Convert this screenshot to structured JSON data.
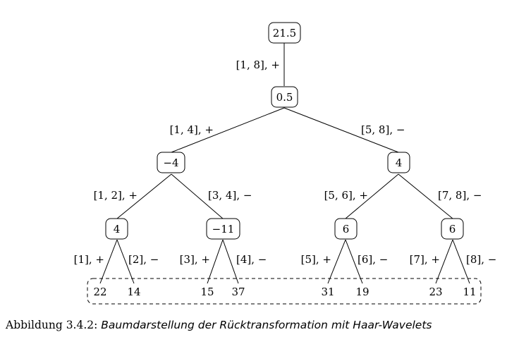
{
  "tree": {
    "nodes": {
      "n1": "21.5",
      "n2": "0.5",
      "n3": "−4",
      "n4": "4",
      "n5": "4",
      "n6": "−11",
      "n7": "6",
      "n8": "6"
    },
    "edges": {
      "e12": "[1, 8], +",
      "e23": "[1, 4], +",
      "e24": "[5, 8], −",
      "e35": "[1, 2], +",
      "e36": "[3, 4], −",
      "e47": "[5, 6], +",
      "e48": "[7, 8], −",
      "l1": "[1], +",
      "l2": "[2], −",
      "l3": "[3], +",
      "l4": "[4], −",
      "l5": "[5], +",
      "l6": "[6], −",
      "l7": "[7], +",
      "l8": "[8], −"
    },
    "leaves": [
      "22",
      "14",
      "15",
      "37",
      "31",
      "19",
      "23",
      "11"
    ]
  },
  "caption": {
    "label": "Abbildung 3.4.2: ",
    "title": "Baumdarstellung der Rücktransformation mit Haar-Wavelets"
  }
}
